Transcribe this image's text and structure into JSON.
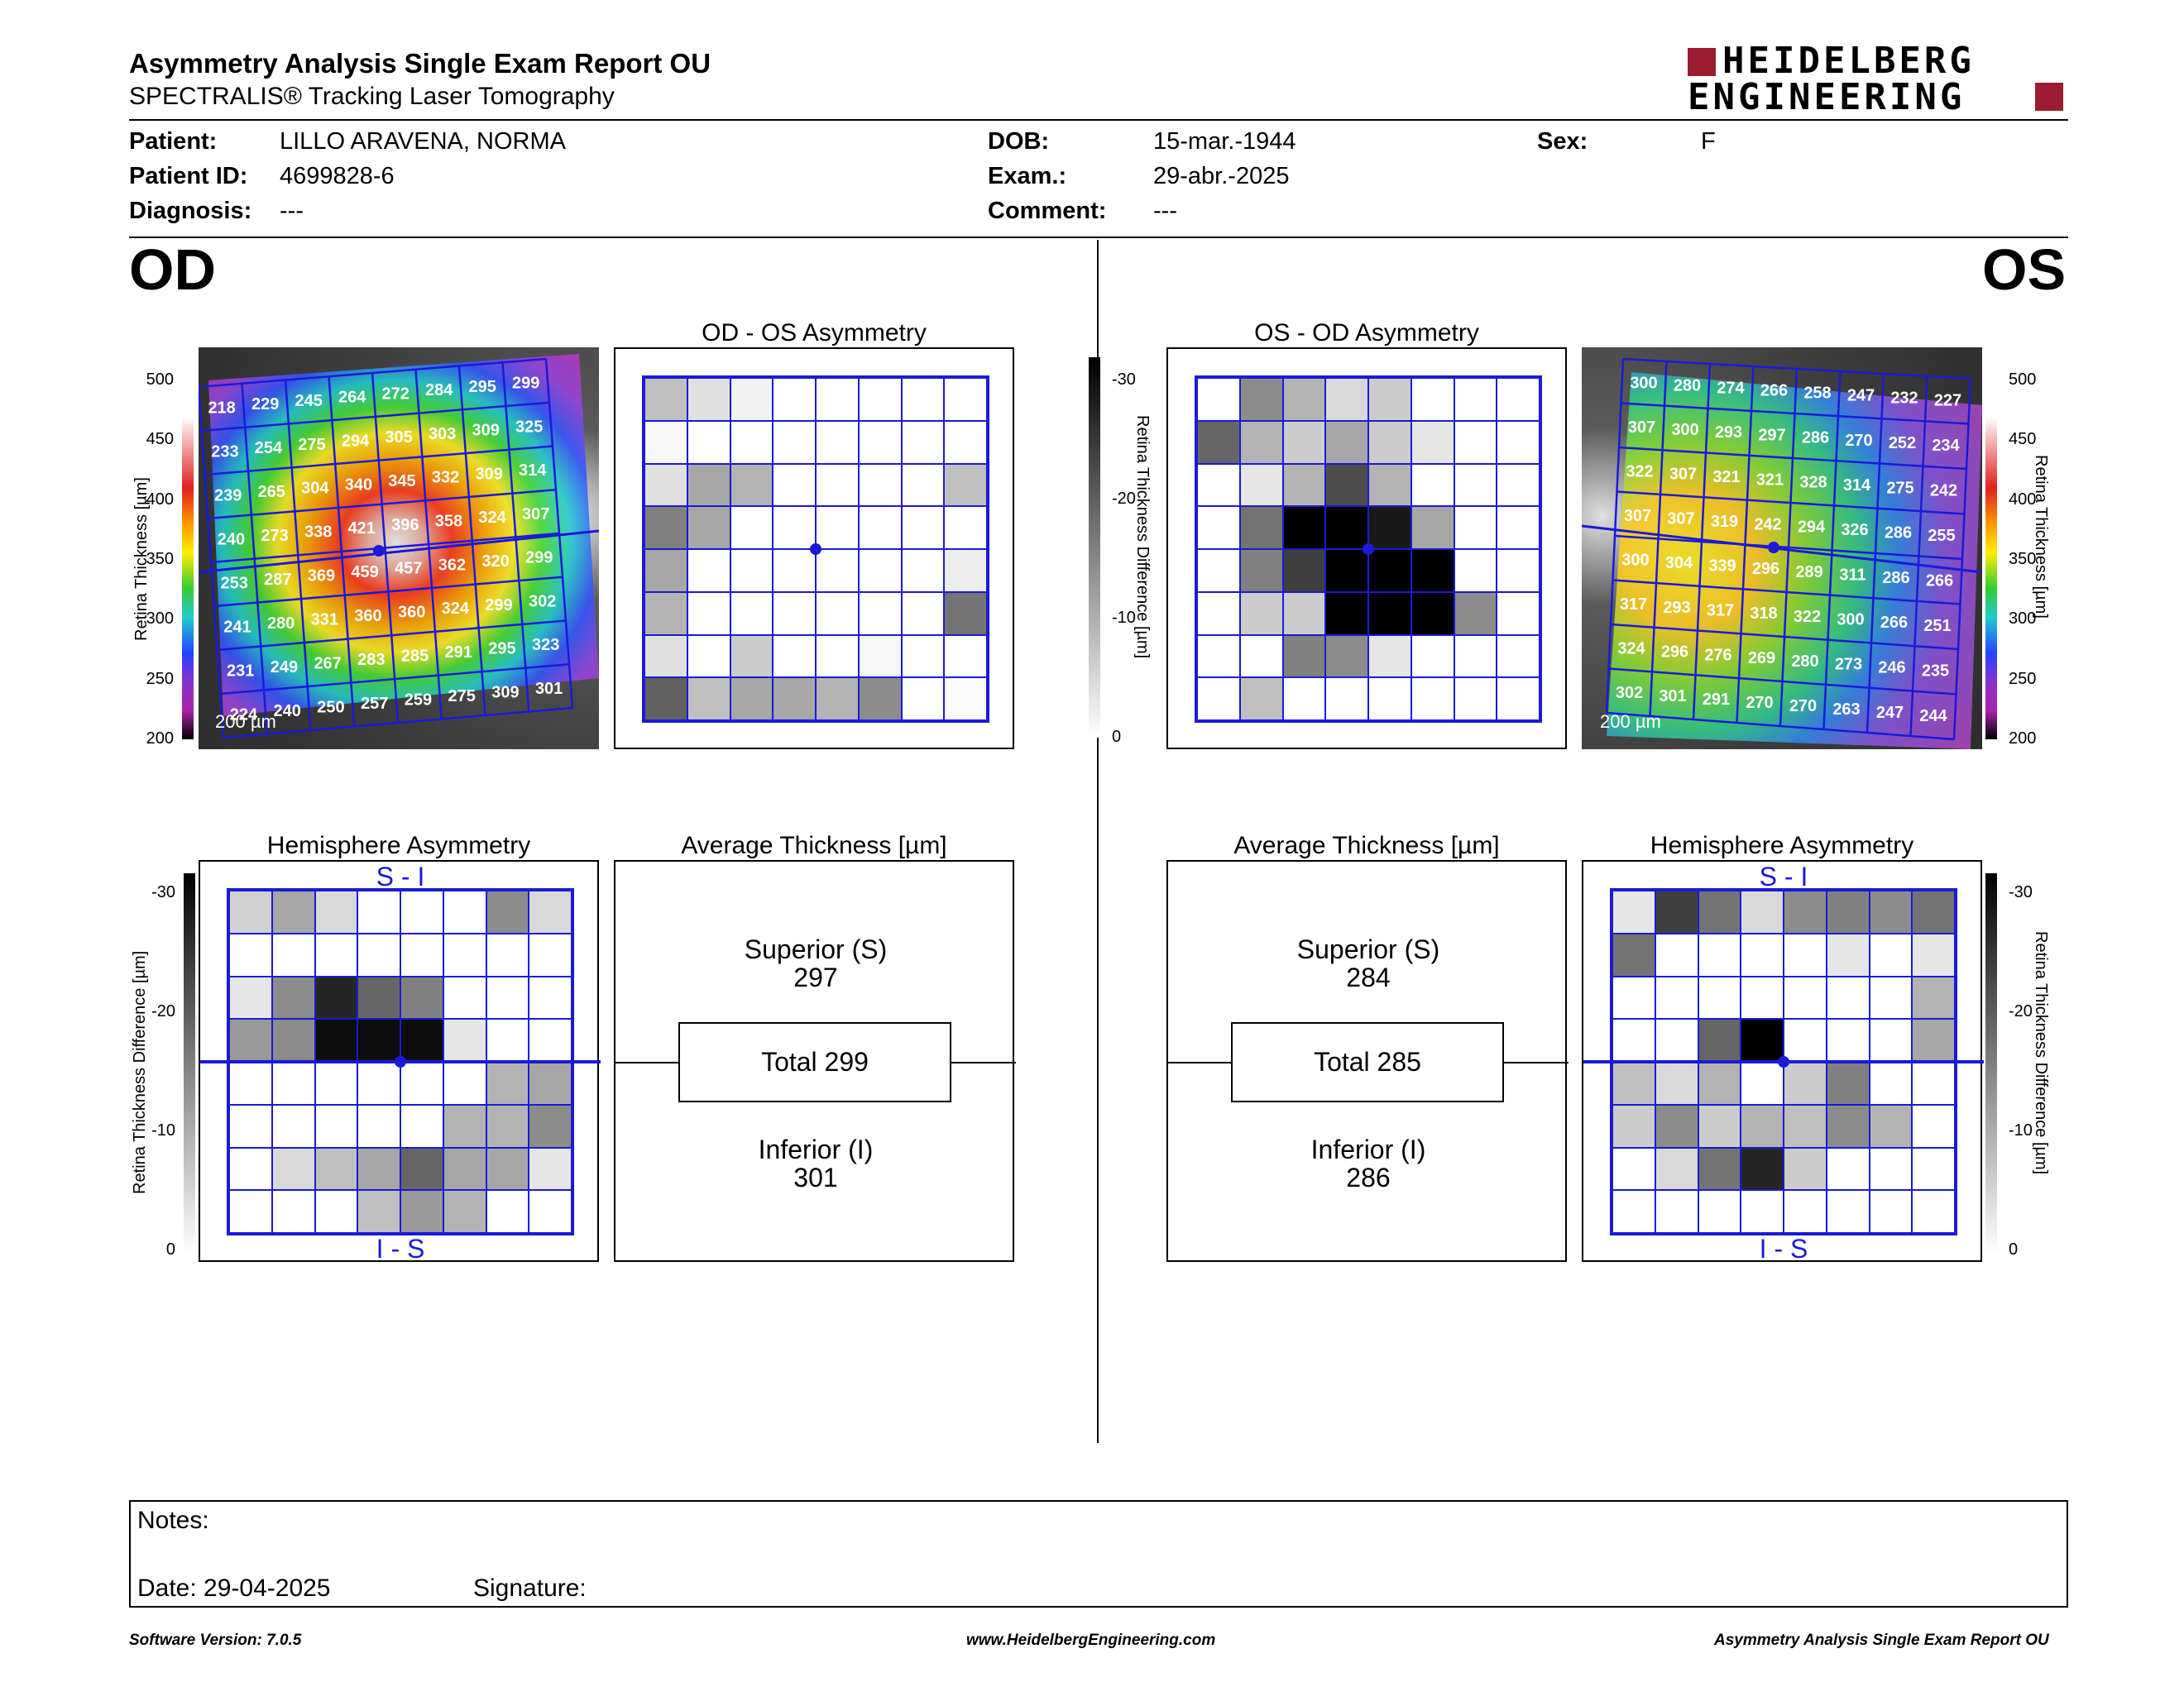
{
  "header": {
    "title": "Asymmetry Analysis Single Exam Report OU",
    "subtitle": "SPECTRALIS® Tracking Laser Tomography",
    "logo_line1": "HEIDELBERG",
    "logo_line2": "ENGINEERING"
  },
  "patient": {
    "patient_label": "Patient:",
    "patient_value": "LILLO ARAVENA, NORMA",
    "id_label": "Patient ID:",
    "id_value": "4699828-6",
    "diagnosis_label": "Diagnosis:",
    "diagnosis_value": "---",
    "dob_label": "DOB:",
    "dob_value": "15-mar.-1944",
    "exam_label": "Exam.:",
    "exam_value": "29-abr.-2025",
    "comment_label": "Comment:",
    "comment_value": "---",
    "sex_label": "Sex:",
    "sex_value": "F"
  },
  "eyes": {
    "od": "OD",
    "os": "OS"
  },
  "panels": {
    "od_asym_title": "OD - OS Asymmetry",
    "os_asym_title": "OS - OD Asymmetry",
    "hemi_title": "Hemisphere Asymmetry",
    "avg_title": "Average Thickness [µm]",
    "s_i": "S - I",
    "i_s": "I - S",
    "scale_label": "200 µm"
  },
  "axes": {
    "thickness_title": "Retina  Thickness [µm]",
    "thickness_ticks": [
      "500",
      "450",
      "400",
      "350",
      "300",
      "250",
      "200"
    ],
    "diff_title": "Retina Thickness Difference [µm]",
    "diff_ticks": [
      "-30",
      "-20",
      "-10",
      "0"
    ]
  },
  "od": {
    "thickness": [
      [
        "218",
        "229",
        "245",
        "264",
        "272",
        "284",
        "295",
        "299"
      ],
      [
        "233",
        "254",
        "275",
        "294",
        "305",
        "303",
        "309",
        "325"
      ],
      [
        "239",
        "265",
        "304",
        "340",
        "345",
        "332",
        "309",
        "314"
      ],
      [
        "240",
        "273",
        "338",
        "421",
        "396",
        "358",
        "324",
        "307"
      ],
      [
        "253",
        "287",
        "369",
        "459",
        "457",
        "362",
        "320",
        "299"
      ],
      [
        "241",
        "280",
        "331",
        "360",
        "360",
        "324",
        "299",
        "302"
      ],
      [
        "231",
        "249",
        "267",
        "283",
        "285",
        "291",
        "295",
        "323"
      ],
      [
        "224",
        "240",
        "250",
        "257",
        "259",
        "275",
        "309",
        "301"
      ]
    ],
    "asym_shades": [
      [
        0.25,
        0.12,
        0.05,
        0,
        0,
        0,
        0,
        0
      ],
      [
        0.03,
        0,
        0,
        0,
        0,
        0,
        0,
        0
      ],
      [
        0.12,
        0.35,
        0.3,
        0,
        0,
        0,
        0,
        0.25
      ],
      [
        0.5,
        0.35,
        0,
        0,
        0,
        0,
        0,
        0
      ],
      [
        0.35,
        0,
        0,
        0,
        0,
        0,
        0,
        0.07
      ],
      [
        0.3,
        0,
        0,
        0,
        0,
        0,
        0,
        0.55
      ],
      [
        0.12,
        0,
        0.2,
        0,
        0,
        0.03,
        0,
        0
      ],
      [
        0.62,
        0.25,
        0.35,
        0.35,
        0.3,
        0.45,
        0,
        0.02
      ]
    ],
    "hemi_shades": [
      [
        0.18,
        0.35,
        0.15,
        0,
        0,
        0,
        0.45,
        0.15
      ],
      [
        0,
        0,
        0,
        0,
        0,
        0,
        0,
        0
      ],
      [
        0.1,
        0.45,
        0.85,
        0.6,
        0.5,
        0,
        0,
        0
      ],
      [
        0.4,
        0.45,
        0.95,
        0.95,
        0.95,
        0.1,
        0,
        0
      ],
      [
        0,
        0,
        0,
        0,
        0,
        0,
        0.3,
        0.35
      ],
      [
        0,
        0,
        0,
        0,
        0,
        0.3,
        0.3,
        0.45
      ],
      [
        0,
        0.15,
        0.25,
        0.35,
        0.6,
        0.35,
        0.35,
        0.1
      ],
      [
        0,
        0,
        0,
        0.25,
        0.4,
        0.3,
        0,
        0
      ]
    ],
    "avg": {
      "superior_label": "Superior (S)",
      "superior": "297",
      "total_label": "Total 299",
      "inferior_label": "Inferior (I)",
      "inferior": "301"
    }
  },
  "os": {
    "thickness": [
      [
        "300",
        "280",
        "274",
        "266",
        "258",
        "247",
        "232",
        "227"
      ],
      [
        "307",
        "300",
        "293",
        "297",
        "286",
        "270",
        "252",
        "234"
      ],
      [
        "322",
        "307",
        "321",
        "321",
        "328",
        "314",
        "275",
        "242"
      ],
      [
        "307",
        "307",
        "319",
        "242",
        "294",
        "326",
        "286",
        "255"
      ],
      [
        "300",
        "304",
        "339",
        "296",
        "289",
        "311",
        "286",
        "266"
      ],
      [
        "317",
        "293",
        "317",
        "318",
        "322",
        "300",
        "266",
        "251"
      ],
      [
        "324",
        "296",
        "276",
        "269",
        "280",
        "273",
        "246",
        "235"
      ],
      [
        "302",
        "301",
        "291",
        "270",
        "270",
        "263",
        "247",
        "244"
      ]
    ],
    "asym_shades": [
      [
        0,
        0.45,
        0.3,
        0.15,
        0.2,
        0,
        0,
        0
      ],
      [
        0.6,
        0.3,
        0.2,
        0.35,
        0.2,
        0.1,
        0,
        0
      ],
      [
        0,
        0.1,
        0.3,
        0.7,
        0.3,
        0,
        0,
        0
      ],
      [
        0,
        0.55,
        1,
        1,
        0.9,
        0.35,
        0,
        0
      ],
      [
        0,
        0.5,
        0.75,
        1,
        1,
        1,
        0,
        0
      ],
      [
        0,
        0.2,
        0.2,
        1,
        1,
        1,
        0.45,
        0
      ],
      [
        0,
        0,
        0.5,
        0.45,
        0.1,
        0,
        0,
        0
      ],
      [
        0,
        0.25,
        0,
        0,
        0,
        0,
        0,
        0
      ]
    ],
    "hemi_shades": [
      [
        0.1,
        0.75,
        0.55,
        0.15,
        0.45,
        0.5,
        0.45,
        0.55
      ],
      [
        0.55,
        0,
        0,
        0,
        0,
        0.1,
        0,
        0.1
      ],
      [
        0,
        0,
        0,
        0,
        0,
        0,
        0,
        0.3
      ],
      [
        0,
        0,
        0.6,
        1,
        0,
        0,
        0,
        0.35
      ],
      [
        0.25,
        0.15,
        0.3,
        0,
        0.2,
        0.5,
        0,
        0
      ],
      [
        0.2,
        0.45,
        0.2,
        0.3,
        0.25,
        0.45,
        0.3,
        0
      ],
      [
        0,
        0.15,
        0.55,
        0.85,
        0.2,
        0,
        0,
        0
      ],
      [
        0,
        0,
        0,
        0,
        0,
        0,
        0,
        0
      ]
    ],
    "avg": {
      "superior_label": "Superior (S)",
      "superior": "284",
      "total_label": "Total 285",
      "inferior_label": "Inferior (I)",
      "inferior": "286"
    }
  },
  "notes": {
    "notes_label": "Notes:",
    "date_label": "Date: 29-04-2025",
    "signature_label": "Signature:"
  },
  "footer": {
    "version": "Software Version: 7.0.5",
    "website": "www.HeidelbergEngineering.com",
    "report": "Asymmetry Analysis Single Exam Report OU"
  },
  "colors": {
    "logo_red": "#9b1b30",
    "grid_blue": "#1a1ad8"
  }
}
